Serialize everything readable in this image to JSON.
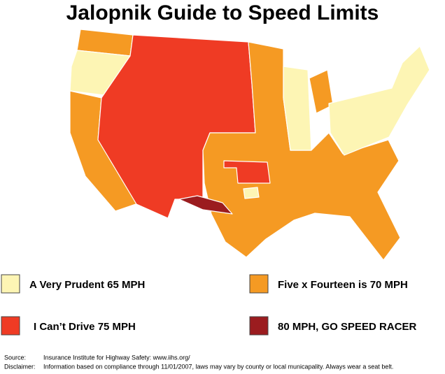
{
  "title": "Jalopnik Guide to Speed Limits",
  "legend": [
    {
      "label": "A Very Prudent 65 MPH",
      "color": "#fdf5b4"
    },
    {
      "label": "Five x Fourteen is 70 MPH",
      "color": "#f59a23"
    },
    {
      "label": "I Can’t Drive 75 MPH",
      "color": "#ef3b24"
    },
    {
      "label": "80 MPH, GO SPEED RACER",
      "color": "#9b1c1f"
    }
  ],
  "source": {
    "label": "Source:",
    "text": "Insurance Institute for Highway Safety: www.iihs.org/"
  },
  "disclaimer": {
    "label": "Disclaimer:",
    "text": "Information based on compliance through 11/01/2007, laws may vary by county or local municapality. Always wear a seat belt."
  }
}
